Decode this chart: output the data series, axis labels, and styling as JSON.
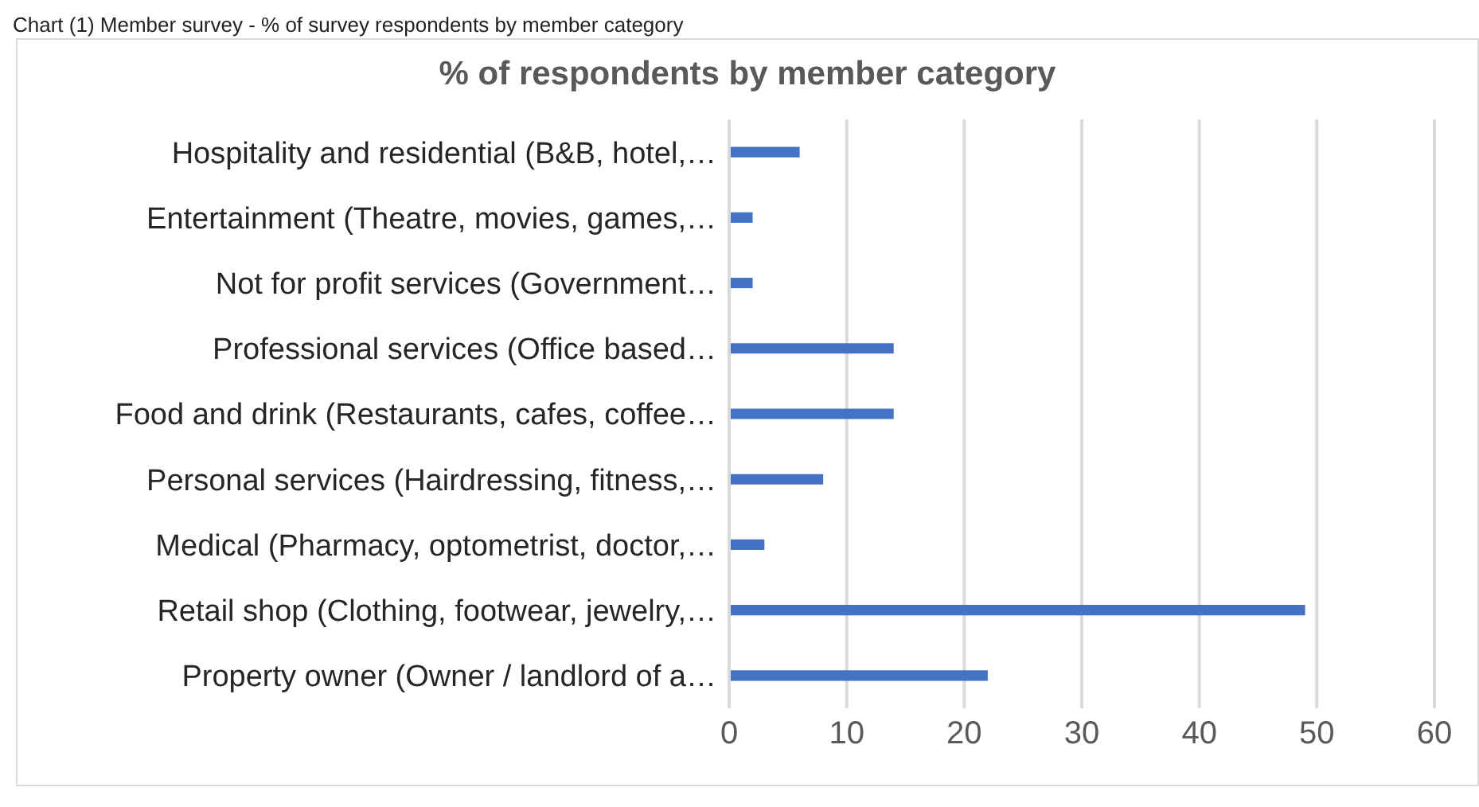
{
  "chart_data": {
    "type": "bar",
    "orientation": "horizontal",
    "title": "% of respondents by member category",
    "annotations": [
      "Chart (1) Member survey - % of survey respondents by member category"
    ],
    "categories": [
      "Hospitality and residential (B&B, hotel,…",
      "Entertainment (Theatre, movies, games,…",
      "Not for profit services (Government…",
      "Professional services (Office based…",
      "Food and drink (Restaurants, cafes, coffee…",
      "Personal services (Hairdressing, fitness,…",
      "Medical (Pharmacy, optometrist, doctor,…",
      "Retail shop (Clothing, footwear, jewelry,…",
      "Property owner (Owner / landlord of a…"
    ],
    "values": [
      6,
      2,
      2,
      14,
      14,
      8,
      3,
      49,
      22
    ],
    "color": "#4472c4",
    "xlim": [
      0,
      60
    ],
    "xticks": [
      0,
      10,
      20,
      30,
      40,
      50,
      60
    ],
    "grid": "x"
  }
}
